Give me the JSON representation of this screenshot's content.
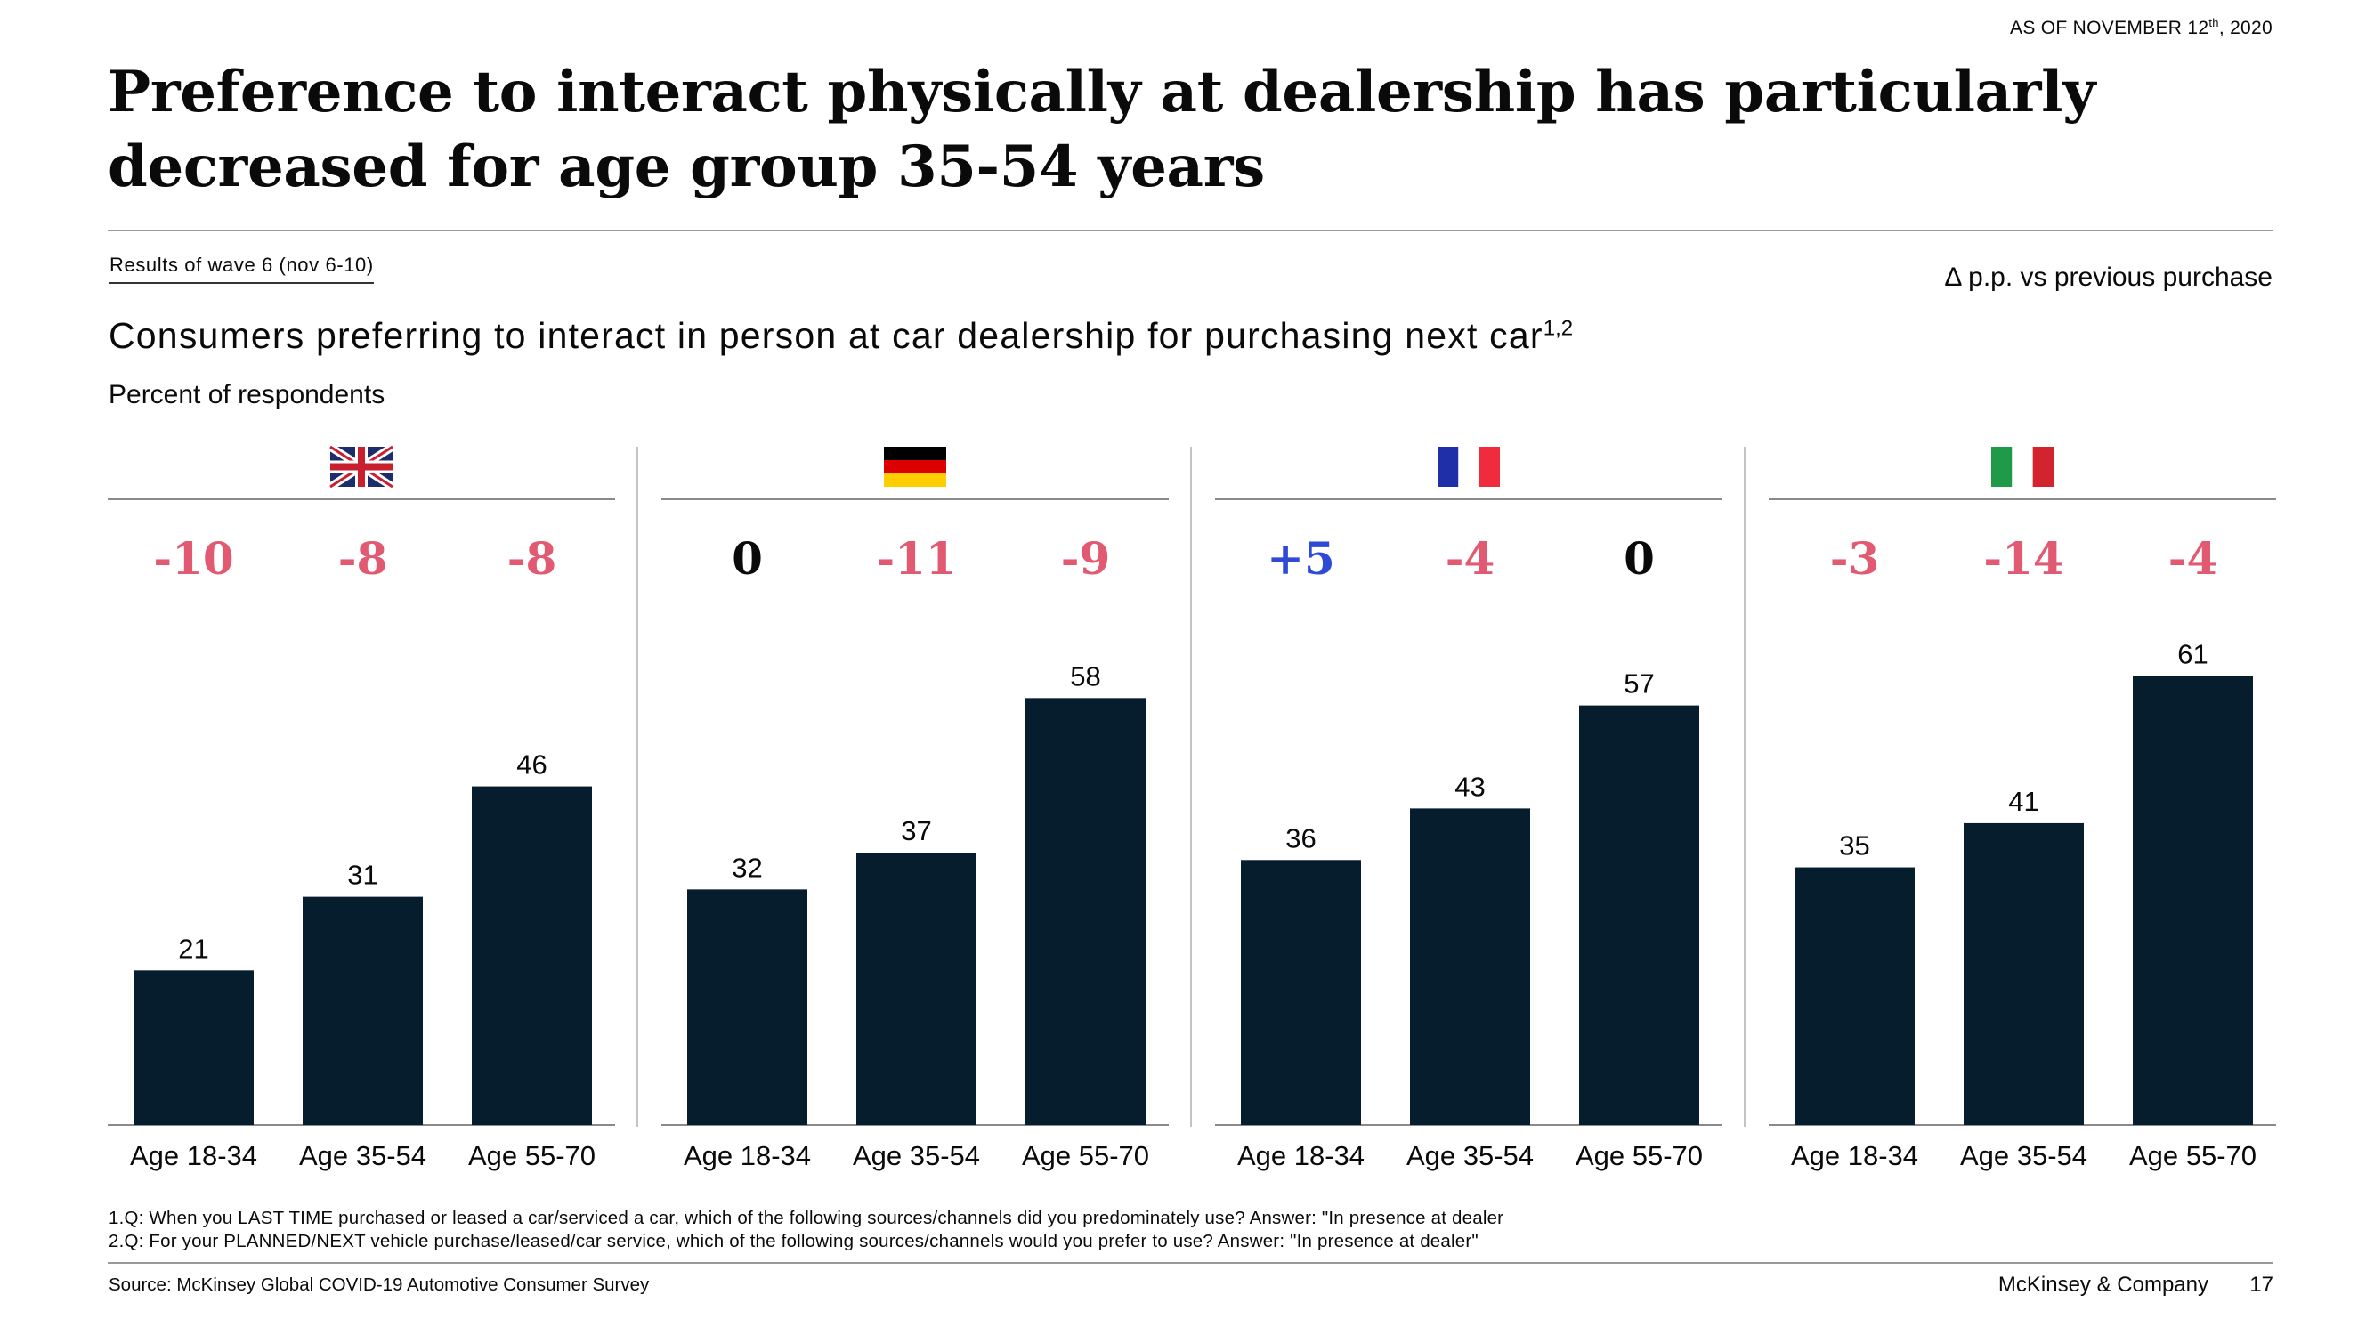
{
  "header": {
    "as_of": "AS OF NOVEMBER 12",
    "as_of_sup": "th",
    "as_of_suffix": ", 2020",
    "title": "Preference to interact physically at dealership has particularly decreased for age group 35-54 years",
    "wave_label": "Results of wave 6 (nov 6-10)",
    "delta_note": "Δ p.p. vs previous purchase"
  },
  "chart_data": {
    "type": "bar",
    "title": "Consumers preferring to interact in person at car dealership for purchasing next car",
    "title_sup": "1,2",
    "unit": "Percent of respondents",
    "categories": [
      "Age 18-34",
      "Age 35-54",
      "Age 55-70"
    ],
    "ylim": [
      0,
      100
    ],
    "grid": false,
    "bar_color": "#061d2e",
    "positive_delta_color": "#2f4ad6",
    "negative_delta_color": "#e15a72",
    "zero_delta_color": "#0a0a0a",
    "panels": [
      {
        "country": "United Kingdom",
        "flag": "uk-flag",
        "values": [
          21,
          31,
          46
        ],
        "deltas": [
          "-10",
          "-8",
          "-8"
        ]
      },
      {
        "country": "Germany",
        "flag": "germany-flag",
        "values": [
          32,
          37,
          58
        ],
        "deltas": [
          "0",
          "-11",
          "-9"
        ]
      },
      {
        "country": "France",
        "flag": "france-flag",
        "values": [
          36,
          43,
          57
        ],
        "deltas": [
          "+5",
          "-4",
          "0"
        ]
      },
      {
        "country": "Italy",
        "flag": "italy-flag",
        "values": [
          35,
          41,
          61
        ],
        "deltas": [
          "-3",
          "-14",
          "-4"
        ]
      }
    ]
  },
  "footnotes": [
    "1.Q: When you LAST TIME purchased or leased a car/serviced a car, which of the following sources/channels did you predominately use? Answer: \"In presence at dealer",
    "2.Q: For your PLANNED/NEXT vehicle purchase/leased/car service, which of the following sources/channels would you prefer to use? Answer: \"In presence at dealer\""
  ],
  "source": "Source: McKinsey Global COVID-19 Automotive Consumer Survey",
  "brand": "McKinsey & Company",
  "page_number": "17"
}
